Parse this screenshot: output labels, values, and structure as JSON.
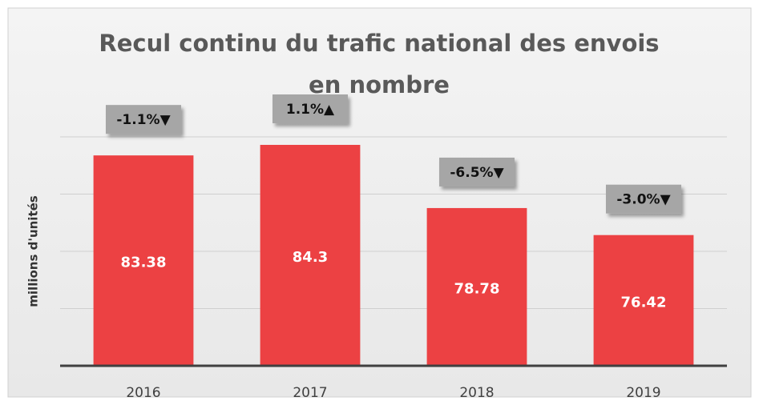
{
  "chart_data": {
    "type": "bar",
    "title": "Recul continu du trafic national des envois en nombre",
    "y_label": "millions d'unités",
    "categories": [
      "2016",
      "2017",
      "2018",
      "2019"
    ],
    "values": [
      83.38,
      84.3,
      78.78,
      76.42
    ],
    "annotations": [
      "-1.1%▼",
      "1.1%▲",
      "-6.5%▼",
      "-3.0%▼"
    ],
    "color": "#ec4143",
    "ylim": [
      65,
      85
    ],
    "yticks": [
      65,
      70,
      75,
      80,
      85
    ],
    "grid": true
  }
}
